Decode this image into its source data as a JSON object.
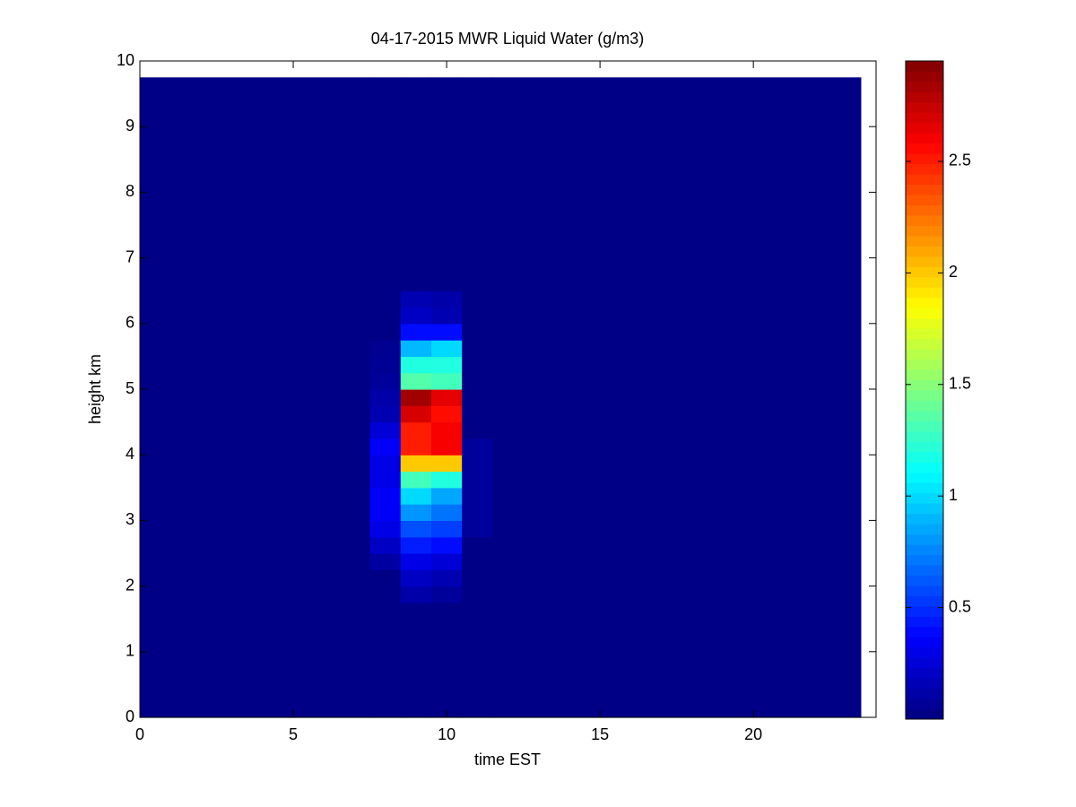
{
  "chart_data": {
    "type": "heatmap",
    "title": "04-17-2015 MWR Liquid Water (g/m3)",
    "x_label": "time EST",
    "y_label": "height km",
    "x_edges": [
      0,
      7.5,
      8.5,
      9.5,
      10.5,
      11.5,
      23.5
    ],
    "y_edges": [
      0,
      1.75,
      2,
      2.25,
      2.5,
      2.75,
      3,
      3.25,
      3.5,
      3.75,
      4,
      4.25,
      4.5,
      4.75,
      5,
      5.25,
      5.5,
      5.75,
      6,
      6.25,
      6.5,
      9.75
    ],
    "values": [
      [
        0.02,
        0.02,
        0.02,
        0.02,
        0.02,
        0.02,
        0.02,
        0.02,
        0.02,
        0.02,
        0.02,
        0.02,
        0.02,
        0.02,
        0.02,
        0.02,
        0.02,
        0.02,
        0.02,
        0.02,
        0.02
      ],
      [
        0.02,
        0.02,
        0.02,
        0.1,
        0.2,
        0.3,
        0.35,
        0.35,
        0.3,
        0.3,
        0.35,
        0.25,
        0.15,
        0.12,
        0.08,
        0.06,
        0.05,
        0.02,
        0.02,
        0.02,
        0.02
      ],
      [
        0.02,
        0.12,
        0.2,
        0.3,
        0.45,
        0.6,
        0.8,
        1.0,
        1.3,
        2.0,
        2.5,
        2.5,
        2.7,
        2.85,
        1.35,
        1.2,
        0.9,
        0.4,
        0.2,
        0.15,
        0.02
      ],
      [
        0.02,
        0.08,
        0.15,
        0.25,
        0.4,
        0.55,
        0.7,
        0.85,
        1.2,
        2.0,
        2.6,
        2.6,
        2.55,
        2.65,
        1.3,
        1.2,
        1.0,
        0.4,
        0.15,
        0.12,
        0.02
      ],
      [
        0.02,
        0.02,
        0.02,
        0.02,
        0.02,
        0.08,
        0.08,
        0.08,
        0.08,
        0.08,
        0.08,
        0.02,
        0.02,
        0.02,
        0.02,
        0.02,
        0.02,
        0.02,
        0.02,
        0.02,
        0.02
      ],
      [
        0.02,
        0.02,
        0.02,
        0.02,
        0.02,
        0.02,
        0.02,
        0.02,
        0.02,
        0.02,
        0.02,
        0.02,
        0.02,
        0.02,
        0.02,
        0.02,
        0.02,
        0.02,
        0.02,
        0.02,
        0.02
      ]
    ],
    "xlim": [
      0,
      24
    ],
    "xticks": [
      0,
      5,
      10,
      15,
      20
    ],
    "ylim": [
      0,
      10
    ],
    "yticks": [
      0,
      1,
      2,
      3,
      4,
      5,
      6,
      7,
      8,
      9,
      10
    ],
    "clim": [
      0,
      2.95
    ],
    "cticks": [
      0.5,
      1,
      1.5,
      2,
      2.5
    ],
    "colormap": "jet"
  }
}
